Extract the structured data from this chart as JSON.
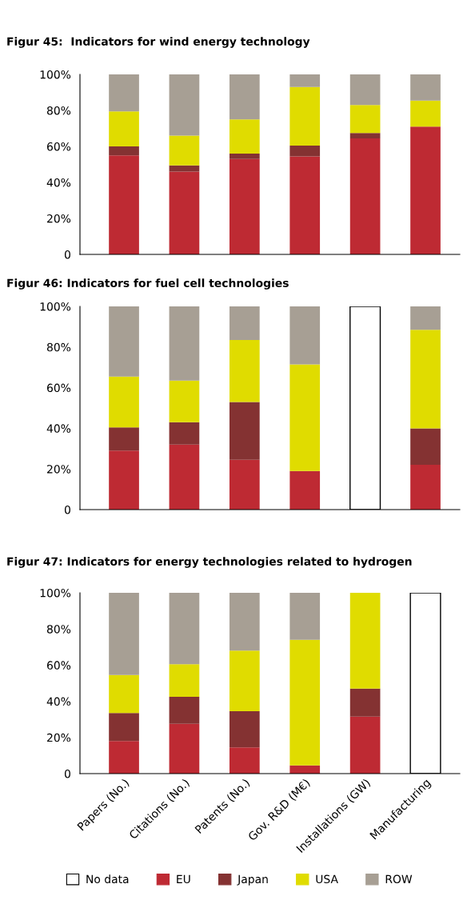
{
  "chart_data": [
    {
      "type": "bar",
      "stacked": true,
      "title": "Figur 45:  Indicators for wind energy technology",
      "categories": [
        null,
        null,
        null,
        null,
        null,
        null
      ],
      "legend": false,
      "grid": false,
      "ylim": [
        0,
        100
      ],
      "yticks": [
        {
          "value": 0,
          "label": "0"
        },
        {
          "value": 20,
          "label": "20%"
        },
        {
          "value": 40,
          "label": "40%"
        },
        {
          "value": 60,
          "label": "60%"
        },
        {
          "value": 80,
          "label": "80%"
        },
        {
          "value": 100,
          "label": "100%"
        }
      ],
      "series": [
        {
          "color": "#be2a33",
          "values": [
            55,
            46,
            53,
            54.5,
            64.5,
            71
          ]
        },
        {
          "color": "#843232",
          "values": [
            5,
            3.5,
            3,
            6,
            3,
            null
          ]
        },
        {
          "color": "#e0dc00",
          "values": [
            19.5,
            16.5,
            19,
            32.5,
            15.5,
            14.5
          ]
        },
        {
          "color": "#a79f94",
          "values": [
            20.5,
            34,
            25,
            7,
            17,
            14.5
          ]
        }
      ]
    },
    {
      "type": "bar",
      "stacked": true,
      "title": "Figur 46: Indicators for fuel cell technologies",
      "categories": [
        null,
        null,
        null,
        null,
        null,
        null
      ],
      "legend": false,
      "grid": false,
      "ylim": [
        0,
        100
      ],
      "yticks": [
        {
          "value": 0,
          "label": "0"
        },
        {
          "value": 20,
          "label": "20%"
        },
        {
          "value": 40,
          "label": "40%"
        },
        {
          "value": 60,
          "label": "60%"
        },
        {
          "value": 80,
          "label": "80%"
        },
        {
          "value": 100,
          "label": "100%"
        }
      ],
      "series": [
        {
          "color": "#be2a33",
          "values": [
            29,
            32,
            24.5,
            19,
            null,
            22
          ]
        },
        {
          "color": "#843232",
          "values": [
            11.5,
            11,
            28.5,
            null,
            null,
            18
          ]
        },
        {
          "color": "#e0dc00",
          "values": [
            25,
            20.5,
            30.5,
            52.5,
            null,
            48.5
          ]
        },
        {
          "color": "#a79f94",
          "values": [
            34.5,
            36.5,
            16.5,
            28.5,
            null,
            11.5
          ]
        },
        {
          "color": "#ffffff",
          "values": [
            null,
            null,
            null,
            null,
            100,
            null
          ]
        }
      ]
    },
    {
      "type": "bar",
      "stacked": true,
      "title": "Figur 47: Indicators for energy technologies related to hydrogen",
      "categories": [
        "Papers (No.)",
        "Citations (No.)",
        "Patents (No.)",
        "Gov. R&D (M€)",
        "Installations (GW)",
        "Manufacturing"
      ],
      "legend": "bottom",
      "grid": false,
      "ylim": [
        0,
        100
      ],
      "yticks": [
        {
          "value": 0,
          "label": "0"
        },
        {
          "value": 20,
          "label": "20%"
        },
        {
          "value": 40,
          "label": "40%"
        },
        {
          "value": 60,
          "label": "60%"
        },
        {
          "value": 80,
          "label": "80%"
        },
        {
          "value": 100,
          "label": "100%"
        }
      ],
      "series": [
        {
          "name": "No data",
          "color": "#ffffff",
          "values": [
            null,
            null,
            null,
            null,
            null,
            100
          ]
        },
        {
          "name": "EU",
          "color": "#be2a33",
          "values": [
            18,
            27.5,
            14.5,
            4.5,
            31.5,
            null
          ]
        },
        {
          "name": "Japan",
          "color": "#843232",
          "values": [
            15.5,
            15,
            20,
            null,
            15.5,
            null
          ]
        },
        {
          "name": "USA",
          "color": "#e0dc00",
          "values": [
            21,
            18,
            33.5,
            69.5,
            53,
            null
          ]
        },
        {
          "name": "ROW",
          "color": "#a79f94",
          "values": [
            45.5,
            39.5,
            32,
            26,
            null,
            null
          ]
        }
      ]
    }
  ]
}
